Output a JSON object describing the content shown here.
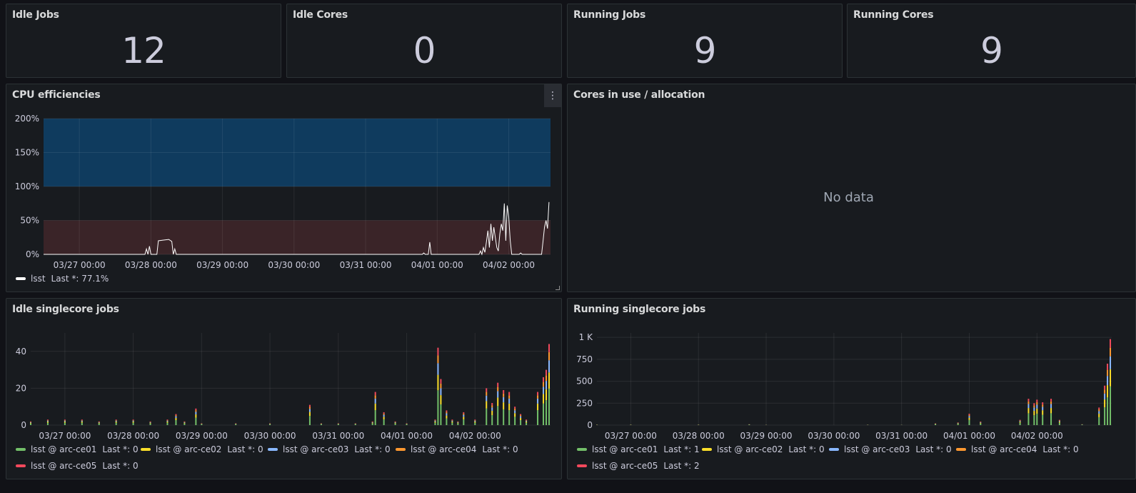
{
  "stats": [
    {
      "title": "Idle Jobs",
      "value": "12"
    },
    {
      "title": "Idle Cores",
      "value": "0"
    },
    {
      "title": "Running Jobs",
      "value": "9"
    },
    {
      "title": "Running Cores",
      "value": "9"
    }
  ],
  "panels": {
    "cpu": {
      "title": "CPU efficiencies",
      "menu_icon": "kebab-menu-icon"
    },
    "cores": {
      "title": "Cores in use / allocation",
      "no_data": "No data"
    },
    "idle": {
      "title": "Idle singlecore jobs"
    },
    "running": {
      "title": "Running singlecore jobs"
    }
  },
  "colors": {
    "background": "#111217",
    "panel": "#181b1f",
    "threshold_high": "#0f3b5e",
    "threshold_low": "#3a2428",
    "cpu_line": "#ffffff",
    "arc-ce01": "#73bf69",
    "arc-ce02": "#fade2a",
    "arc-ce03": "#8ab8ff",
    "arc-ce04": "#ff9830",
    "arc-ce05": "#f2495c"
  },
  "chart_data": [
    {
      "id": "cpu",
      "type": "line",
      "title": "CPU efficiencies",
      "x_ticks": [
        "03/27 00:00",
        "03/28 00:00",
        "03/29 00:00",
        "03/30 00:00",
        "03/31 00:00",
        "04/01 00:00",
        "04/02 00:00"
      ],
      "y_ticks": [
        "0%",
        "50%",
        "100%",
        "150%",
        "200%"
      ],
      "ylim": [
        0,
        200
      ],
      "xlim": [
        "03/26 12:00",
        "04/02 14:00"
      ],
      "thresholds": [
        {
          "from": 100,
          "to": 200,
          "color": "#0f3b5e"
        },
        {
          "from": 0,
          "to": 50,
          "color": "#3a2428"
        }
      ],
      "series": [
        {
          "name": "lsst",
          "color": "#ffffff",
          "last_label": "Last *:",
          "last": "77.1%",
          "points": [
            [
              "03/26 12:00",
              0
            ],
            [
              "03/27 22:00",
              0
            ],
            [
              "03/27 22:30",
              8
            ],
            [
              "03/27 23:00",
              0
            ],
            [
              "03/27 23:30",
              12
            ],
            [
              "03/28 00:00",
              0
            ],
            [
              "03/28 02:00",
              0
            ],
            [
              "03/28 02:30",
              20
            ],
            [
              "03/28 04:00",
              21
            ],
            [
              "03/28 06:00",
              22
            ],
            [
              "03/28 07:00",
              19
            ],
            [
              "03/28 07:30",
              0
            ],
            [
              "03/28 08:00",
              8
            ],
            [
              "03/28 08:30",
              0
            ],
            [
              "03/29 00:00",
              0
            ],
            [
              "03/31 19:00",
              0
            ],
            [
              "03/31 19:30",
              2
            ],
            [
              "03/31 20:00",
              0
            ],
            [
              "03/31 21:00",
              0
            ],
            [
              "03/31 21:30",
              18
            ],
            [
              "03/31 22:00",
              0
            ],
            [
              "04/01 14:00",
              0
            ],
            [
              "04/01 14:30",
              5
            ],
            [
              "04/01 15:00",
              0
            ],
            [
              "04/01 15:30",
              10
            ],
            [
              "04/01 16:00",
              3
            ],
            [
              "04/01 16:30",
              18
            ],
            [
              "04/01 17:00",
              35
            ],
            [
              "04/01 17:30",
              10
            ],
            [
              "04/01 18:00",
              45
            ],
            [
              "04/01 18:30",
              20
            ],
            [
              "04/01 19:00",
              40
            ],
            [
              "04/01 19:30",
              25
            ],
            [
              "04/01 20:00",
              10
            ],
            [
              "04/01 20:30",
              5
            ],
            [
              "04/01 21:00",
              30
            ],
            [
              "04/01 21:30",
              45
            ],
            [
              "04/01 22:00",
              35
            ],
            [
              "04/01 22:30",
              75
            ],
            [
              "04/01 23:00",
              20
            ],
            [
              "04/01 23:30",
              72
            ],
            [
              "04/02 00:00",
              55
            ],
            [
              "04/02 00:30",
              20
            ],
            [
              "04/02 01:00",
              0
            ],
            [
              "04/02 03:30",
              0
            ],
            [
              "04/02 04:00",
              2
            ],
            [
              "04/02 04:30",
              0
            ],
            [
              "04/02 11:00",
              0
            ],
            [
              "04/02 11:30",
              20
            ],
            [
              "04/02 12:00",
              40
            ],
            [
              "04/02 12:30",
              50
            ],
            [
              "04/02 13:00",
              38
            ],
            [
              "04/02 13:30",
              77.1
            ]
          ]
        }
      ]
    },
    {
      "id": "idle",
      "type": "bar",
      "stacked": true,
      "title": "Idle singlecore jobs",
      "x_ticks": [
        "03/27 00:00",
        "03/28 00:00",
        "03/29 00:00",
        "03/30 00:00",
        "03/31 00:00",
        "04/01 00:00",
        "04/02 00:00"
      ],
      "y_ticks": [
        "0",
        "20",
        "40"
      ],
      "ylim": [
        0,
        50
      ],
      "series": [
        {
          "name": "lsst @ arc-ce01",
          "last_label": "Last *:",
          "last": "0",
          "color": "#73bf69"
        },
        {
          "name": "lsst @ arc-ce02",
          "last_label": "Last *:",
          "last": "0",
          "color": "#fade2a"
        },
        {
          "name": "lsst @ arc-ce03",
          "last_label": "Last *:",
          "last": "0",
          "color": "#8ab8ff"
        },
        {
          "name": "lsst @ arc-ce04",
          "last_label": "Last *:",
          "last": "0",
          "color": "#ff9830"
        },
        {
          "name": "lsst @ arc-ce05",
          "last_label": "Last *:",
          "last": "0",
          "color": "#f2495c"
        }
      ],
      "totals": [
        [
          "03/26 12:00",
          2
        ],
        [
          "03/26 18:00",
          3
        ],
        [
          "03/27 00:00",
          3
        ],
        [
          "03/27 06:00",
          3
        ],
        [
          "03/27 12:00",
          2
        ],
        [
          "03/27 18:00",
          3
        ],
        [
          "03/28 00:00",
          3
        ],
        [
          "03/28 06:00",
          2
        ],
        [
          "03/28 12:00",
          3
        ],
        [
          "03/28 15:00",
          6
        ],
        [
          "03/28 18:00",
          2
        ],
        [
          "03/28 22:00",
          9
        ],
        [
          "03/29 00:00",
          1
        ],
        [
          "03/29 12:00",
          1
        ],
        [
          "03/30 00:00",
          1
        ],
        [
          "03/30 14:00",
          11
        ],
        [
          "03/30 18:00",
          1
        ],
        [
          "03/31 00:00",
          1
        ],
        [
          "03/31 06:00",
          1
        ],
        [
          "03/31 12:00",
          2
        ],
        [
          "03/31 13:00",
          18
        ],
        [
          "03/31 16:00",
          7
        ],
        [
          "03/31 20:00",
          2
        ],
        [
          "04/01 00:00",
          1
        ],
        [
          "04/01 10:00",
          3
        ],
        [
          "04/01 11:00",
          42
        ],
        [
          "04/01 12:00",
          25
        ],
        [
          "04/01 14:00",
          8
        ],
        [
          "04/01 16:00",
          3
        ],
        [
          "04/01 18:00",
          2
        ],
        [
          "04/01 20:00",
          7
        ],
        [
          "04/02 00:00",
          3
        ],
        [
          "04/02 04:00",
          20
        ],
        [
          "04/02 06:00",
          12
        ],
        [
          "04/02 08:00",
          23
        ],
        [
          "04/02 10:00",
          19
        ],
        [
          "04/02 12:00",
          18
        ],
        [
          "04/02 14:00",
          10
        ],
        [
          "04/02 16:00",
          6
        ],
        [
          "04/02 18:00",
          3
        ],
        [
          "04/02 22:00",
          18
        ],
        [
          "04/03 00:00",
          26
        ],
        [
          "04/03 01:00",
          30
        ],
        [
          "04/03 02:00",
          44
        ]
      ]
    },
    {
      "id": "running",
      "type": "bar",
      "stacked": true,
      "title": "Running singlecore jobs",
      "x_ticks": [
        "03/27 00:00",
        "03/28 00:00",
        "03/29 00:00",
        "03/30 00:00",
        "03/31 00:00",
        "04/01 00:00",
        "04/02 00:00"
      ],
      "y_ticks": [
        "0",
        "250",
        "500",
        "750",
        "1 K"
      ],
      "ylim": [
        0,
        1050
      ],
      "series": [
        {
          "name": "lsst @ arc-ce01",
          "last_label": "Last *:",
          "last": "1",
          "color": "#73bf69"
        },
        {
          "name": "lsst @ arc-ce02",
          "last_label": "Last *:",
          "last": "0",
          "color": "#fade2a"
        },
        {
          "name": "lsst @ arc-ce03",
          "last_label": "Last *:",
          "last": "0",
          "color": "#8ab8ff"
        },
        {
          "name": "lsst @ arc-ce04",
          "last_label": "Last *:",
          "last": "0",
          "color": "#ff9830"
        },
        {
          "name": "lsst @ arc-ce05",
          "last_label": "Last *:",
          "last": "2",
          "color": "#f2495c"
        }
      ],
      "totals": [
        [
          "03/26 12:00",
          6
        ],
        [
          "03/27 00:00",
          6
        ],
        [
          "03/28 00:00",
          6
        ],
        [
          "03/28 18:00",
          10
        ],
        [
          "03/29 00:00",
          4
        ],
        [
          "03/30 12:00",
          5
        ],
        [
          "03/31 00:00",
          3
        ],
        [
          "03/31 12:00",
          20
        ],
        [
          "03/31 20:00",
          30
        ],
        [
          "04/01 00:00",
          130
        ],
        [
          "04/01 04:00",
          40
        ],
        [
          "04/01 18:00",
          60
        ],
        [
          "04/01 21:00",
          300
        ],
        [
          "04/01 23:00",
          250
        ],
        [
          "04/02 00:00",
          290
        ],
        [
          "04/02 02:00",
          260
        ],
        [
          "04/02 05:00",
          300
        ],
        [
          "04/02 08:00",
          60
        ],
        [
          "04/02 16:00",
          10
        ],
        [
          "04/02 22:00",
          200
        ],
        [
          "04/03 00:00",
          450
        ],
        [
          "04/03 01:00",
          700
        ],
        [
          "04/03 02:00",
          980
        ]
      ]
    }
  ]
}
